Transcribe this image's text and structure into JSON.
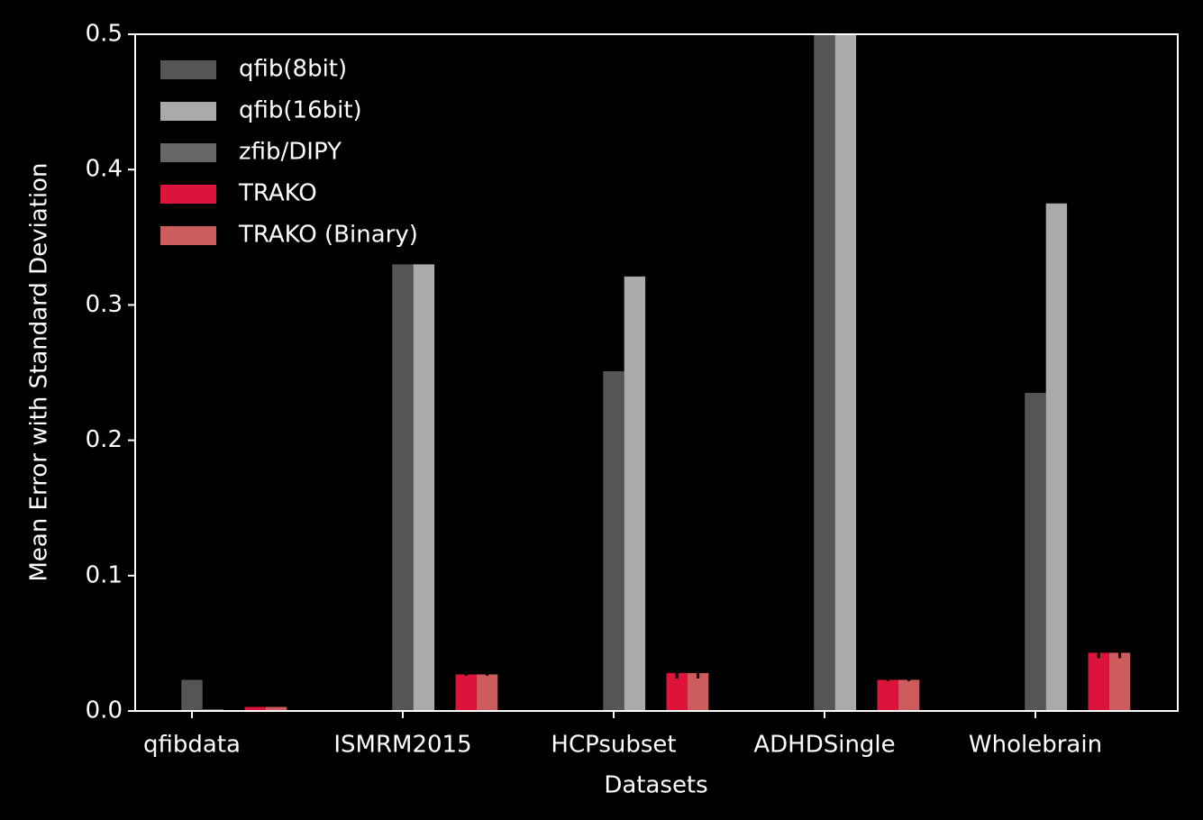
{
  "chart_data": {
    "type": "bar",
    "xlabel": "Datasets",
    "ylabel": "Mean Error with Standard Deviation",
    "categories": [
      "qfibdata",
      "ISMRM2015",
      "HCPsubset",
      "ADHDSingle",
      "Wholebrain"
    ],
    "series": [
      {
        "name": "qfib(8bit)",
        "color": "#555555",
        "values": [
          0.023,
          0.33,
          0.251,
          0.5,
          0.235
        ]
      },
      {
        "name": "qfib(16bit)",
        "color": "#aaaaaa",
        "values": [
          0.001,
          0.33,
          0.321,
          0.5,
          0.375
        ]
      },
      {
        "name": "zfib/DIPY",
        "color": "#666666",
        "values": [
          0,
          0,
          0,
          0,
          0
        ]
      },
      {
        "name": "TRAKO",
        "color": "#dc143c",
        "values": [
          0.003,
          0.027,
          0.028,
          0.023,
          0.043
        ],
        "errors": [
          0,
          0.001,
          0.004,
          0.001,
          0.004
        ]
      },
      {
        "name": "TRAKO (Binary)",
        "color": "#cd5c5c",
        "values": [
          0.003,
          0.027,
          0.028,
          0.023,
          0.043
        ],
        "errors": [
          0,
          0.001,
          0.004,
          0.001,
          0.004
        ]
      }
    ],
    "ylim": [
      0,
      0.5
    ],
    "yticks": [
      {
        "value": 0,
        "label": "0.0"
      },
      0.1,
      0.2,
      0.3,
      0.4,
      0.5
    ],
    "legend": "upper left"
  }
}
